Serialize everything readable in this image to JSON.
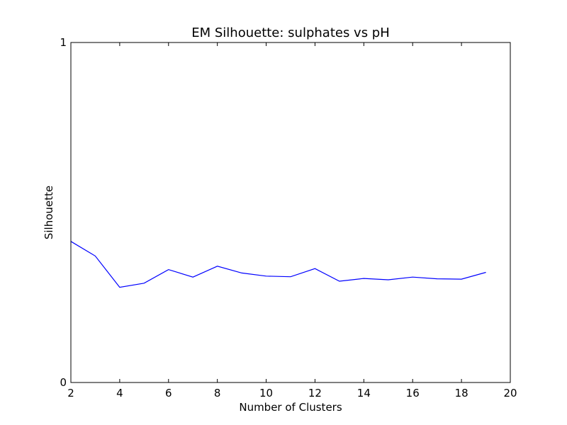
{
  "chart_data": {
    "type": "line",
    "title": "EM Silhouette: sulphates vs pH",
    "xlabel": "Number of Clusters",
    "ylabel": "Silhouette",
    "xlim": [
      2,
      20
    ],
    "ylim": [
      0,
      1
    ],
    "x_ticks": [
      2,
      4,
      6,
      8,
      10,
      12,
      14,
      16,
      18,
      20
    ],
    "y_ticks": [
      0,
      1
    ],
    "grid": false,
    "series": [
      {
        "color": "#0000ff",
        "x": [
          2,
          3,
          4,
          5,
          6,
          7,
          8,
          9,
          10,
          11,
          12,
          13,
          14,
          15,
          16,
          17,
          18,
          19
        ],
        "values": [
          0.415,
          0.372,
          0.28,
          0.292,
          0.332,
          0.31,
          0.342,
          0.322,
          0.313,
          0.311,
          0.335,
          0.298,
          0.306,
          0.302,
          0.31,
          0.305,
          0.304,
          0.324
        ]
      }
    ]
  }
}
